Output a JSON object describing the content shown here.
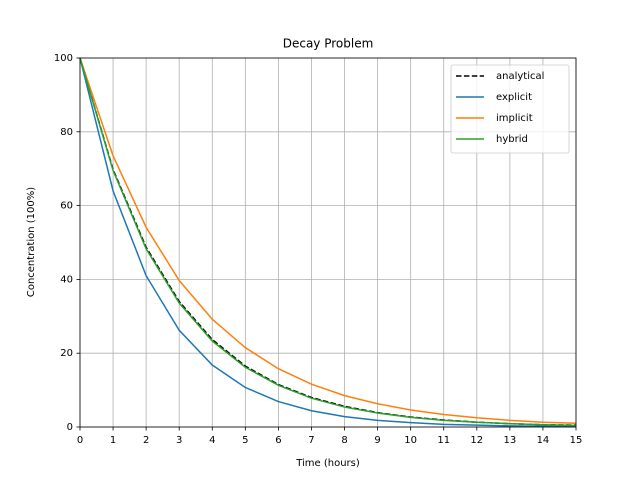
{
  "chart_data": {
    "type": "line",
    "title": "Decay Problem",
    "xlabel": "Time (hours)",
    "ylabel": "Concentration (100%)",
    "x": [
      0,
      1,
      2,
      3,
      4,
      5,
      6,
      7,
      8,
      9,
      10,
      11,
      12,
      13,
      14,
      15
    ],
    "series": [
      {
        "name": "analytical",
        "color": "#000000",
        "linestyle": "--",
        "values": [
          100,
          69.8,
          48.7,
          34.0,
          23.7,
          16.5,
          11.5,
          8.0,
          5.6,
          3.9,
          2.7,
          1.9,
          1.3,
          0.9,
          0.6,
          0.5
        ]
      },
      {
        "name": "explicit",
        "color": "#1f77b4",
        "linestyle": "-",
        "values": [
          100,
          64.0,
          41.0,
          26.2,
          16.8,
          10.7,
          6.9,
          4.4,
          2.8,
          1.8,
          1.2,
          0.7,
          0.5,
          0.3,
          0.2,
          0.1
        ]
      },
      {
        "name": "implicit",
        "color": "#ff7f0e",
        "linestyle": "-",
        "values": [
          100,
          73.5,
          54.1,
          39.7,
          29.2,
          21.5,
          15.8,
          11.6,
          8.5,
          6.3,
          4.6,
          3.4,
          2.5,
          1.8,
          1.3,
          1.0
        ]
      },
      {
        "name": "hybrid",
        "color": "#2ca02c",
        "linestyle": "-",
        "values": [
          100,
          69.5,
          48.3,
          33.6,
          23.3,
          16.2,
          11.3,
          7.8,
          5.4,
          3.8,
          2.6,
          1.8,
          1.3,
          0.9,
          0.6,
          0.4
        ]
      }
    ],
    "xlim": [
      0,
      15
    ],
    "xticks": [
      0,
      1,
      2,
      3,
      4,
      5,
      6,
      7,
      8,
      9,
      10,
      11,
      12,
      13,
      14,
      15
    ],
    "ylim": [
      0,
      100
    ],
    "yticks": [
      0,
      20,
      40,
      60,
      80,
      100
    ],
    "grid": true,
    "legend": "upper right"
  }
}
